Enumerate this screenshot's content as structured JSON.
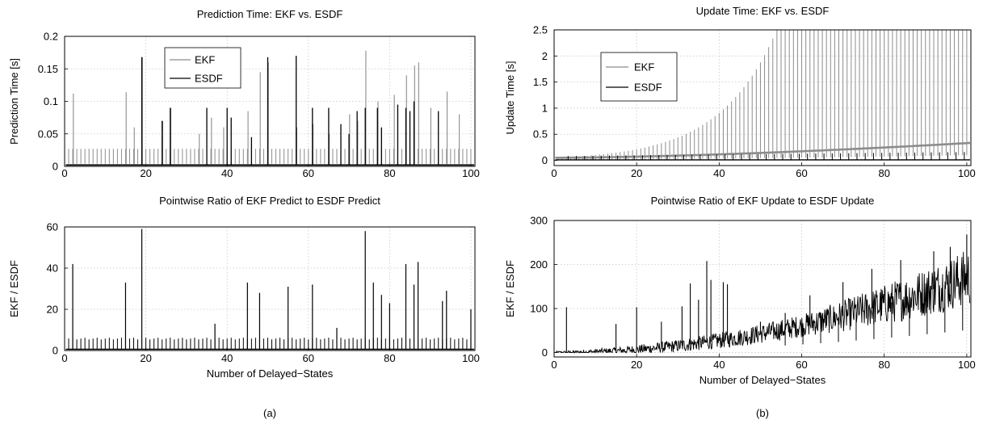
{
  "chart_data": [
    {
      "type": "line",
      "title": "Prediction Time: EKF vs. ESDF",
      "xlabel": "",
      "ylabel": "Prediction Time [s]",
      "xlim": [
        0,
        101
      ],
      "ylim": [
        0,
        0.2
      ],
      "xticks": [
        "0",
        "20",
        "40",
        "60",
        "80",
        "100"
      ],
      "yticks": [
        "0",
        "0.05",
        "0.1",
        "0.15",
        "0.2"
      ],
      "grid": true,
      "legend_position": "upper-center",
      "series": [
        {
          "name": "EKF",
          "color": "#8c8c8c",
          "baseline": 0.027,
          "spikes_x": [
            2,
            15,
            17,
            19,
            24,
            26,
            33,
            36,
            39,
            45,
            48,
            50,
            57,
            61,
            65,
            70,
            72,
            74,
            77,
            81,
            84,
            86,
            87,
            90,
            94,
            97
          ],
          "spikes_y": [
            0.112,
            0.114,
            0.06,
            0.168,
            0.07,
            0.09,
            0.05,
            0.075,
            0.06,
            0.085,
            0.145,
            0.16,
            0.06,
            0.065,
            0.05,
            0.08,
            0.07,
            0.178,
            0.1,
            0.11,
            0.14,
            0.155,
            0.16,
            0.09,
            0.115,
            0.08
          ]
        },
        {
          "name": "ESDF",
          "color": "#000000",
          "baseline": 0.002,
          "spikes_x": [
            19,
            24,
            26,
            35,
            40,
            41,
            46,
            50,
            57,
            61,
            65,
            68,
            70,
            72,
            74,
            77,
            78,
            82,
            84,
            85,
            86,
            92
          ],
          "spikes_y": [
            0.168,
            0.07,
            0.09,
            0.09,
            0.09,
            0.075,
            0.045,
            0.168,
            0.17,
            0.09,
            0.09,
            0.065,
            0.05,
            0.085,
            0.09,
            0.09,
            0.06,
            0.095,
            0.09,
            0.085,
            0.1,
            0.085
          ]
        }
      ]
    },
    {
      "type": "line",
      "title": "Pointwise Ratio of EKF Predict to ESDF Predict",
      "xlabel": "Number of Delayed−States",
      "ylabel": "EKF / ESDF",
      "xlim": [
        0,
        101
      ],
      "ylim": [
        0,
        60
      ],
      "xticks": [
        "0",
        "20",
        "40",
        "60",
        "80",
        "100"
      ],
      "yticks": [
        "0",
        "20",
        "40",
        "60"
      ],
      "grid": true,
      "series": [
        {
          "name": "",
          "color": "#000000",
          "baseline": 0.6,
          "periodic_height": 6,
          "spikes_x": [
            2,
            15,
            19,
            37,
            45,
            48,
            55,
            61,
            67,
            74,
            76,
            78,
            80,
            84,
            86,
            87,
            93,
            94,
            100
          ],
          "spikes_y": [
            42,
            33,
            59,
            13,
            33,
            28,
            31,
            32,
            11,
            58,
            33,
            27,
            23,
            42,
            32,
            43,
            24,
            29,
            20
          ]
        }
      ]
    },
    {
      "type": "line",
      "title": "Update Time: EKF vs. ESDF",
      "xlabel": "",
      "ylabel": "Update Time [s]",
      "xlim": [
        0,
        101
      ],
      "ylim": [
        -0.1,
        2.5
      ],
      "xticks": [
        "0",
        "20",
        "40",
        "60",
        "80",
        "100"
      ],
      "yticks": [
        "0",
        "0.5",
        "1",
        "1.5",
        "2",
        "2.5"
      ],
      "grid": true,
      "legend_position": "upper-left",
      "series": [
        {
          "name": "EKF",
          "color": "#8c8c8c",
          "baseline_start": 0.05,
          "baseline_end": 0.33,
          "spike_curve": "0.05*exp(0.0725*x), capped at 2.5"
        },
        {
          "name": "ESDF",
          "color": "#000000",
          "baseline": 0.01,
          "spike_start": 0.08,
          "spike_end": 0.16
        }
      ]
    },
    {
      "type": "line",
      "title": "Pointwise Ratio of EKF Update to ESDF Update",
      "xlabel": "Number of Delayed−States",
      "ylabel": "EKF / ESDF",
      "xlim": [
        0,
        101
      ],
      "ylim": [
        -10,
        300
      ],
      "xticks": [
        "0",
        "20",
        "40",
        "60",
        "80",
        "100"
      ],
      "yticks": [
        "0",
        "100",
        "200",
        "300"
      ],
      "grid": true,
      "series": [
        {
          "name": "",
          "color": "#000000",
          "trend": "0.017*x^2",
          "trend_end": 175,
          "spikes_x": [
            3,
            15,
            20,
            26,
            31,
            33,
            35,
            37,
            38,
            41,
            42,
            50,
            56,
            62,
            70,
            77,
            84,
            92,
            96,
            100
          ],
          "spikes_y": [
            103,
            65,
            103,
            70,
            105,
            157,
            120,
            208,
            165,
            160,
            155,
            70,
            90,
            130,
            160,
            190,
            210,
            230,
            240,
            268
          ]
        }
      ]
    }
  ],
  "captions": [
    "(a)",
    "(b)"
  ]
}
